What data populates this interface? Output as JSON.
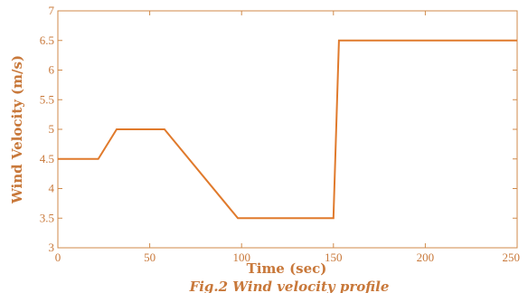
{
  "colors": {
    "series": "#e07a2c",
    "axis": "#d08a4a",
    "text": "#c8783a"
  },
  "chart_data": {
    "type": "line",
    "title": "",
    "xlabel": "Time (sec)",
    "ylabel": "Wind Velocity (m/s)",
    "xlim": [
      0,
      250
    ],
    "ylim": [
      3,
      7
    ],
    "xticks": [
      0,
      50,
      100,
      150,
      200,
      250
    ],
    "yticks": [
      3,
      3.5,
      4,
      4.5,
      5,
      5.5,
      6,
      6.5,
      7
    ],
    "xtick_labels": [
      "0",
      "50",
      "100",
      "150",
      "200",
      "250"
    ],
    "ytick_labels": [
      "3",
      "3.5",
      "4",
      "4.5",
      "5",
      "5.5",
      "6",
      "6.5",
      "7"
    ],
    "grid": false,
    "series": [
      {
        "x": [
          0,
          22,
          32,
          58,
          98,
          150,
          153,
          250
        ],
        "y": [
          4.5,
          4.5,
          5.0,
          5.0,
          3.5,
          3.5,
          6.5,
          6.5
        ]
      }
    ]
  },
  "caption": "Fig.2 Wind velocity profile"
}
